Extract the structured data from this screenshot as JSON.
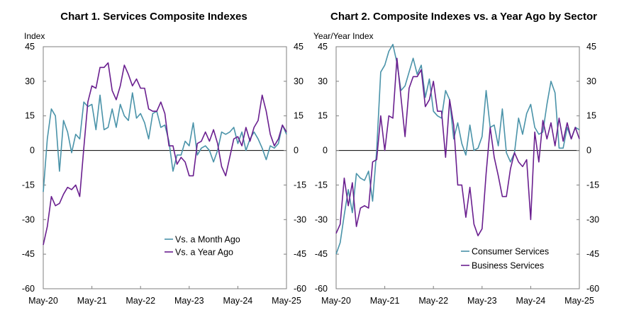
{
  "colors": {
    "teal": "#4a93a9",
    "purple": "#6a1f8f",
    "frame": "#7f7f7f",
    "zero": "#000000"
  },
  "chart_data": [
    {
      "type": "line",
      "title": "Chart 1. Services Composite Indexes",
      "ylabel": "Index",
      "ylim": [
        -60,
        45
      ],
      "yticks": [
        -60,
        -45,
        -30,
        -15,
        0,
        15,
        30,
        45
      ],
      "ytick_labels": [
        "-60",
        "-45",
        "-30",
        "-15",
        "0",
        "15",
        "30",
        "45"
      ],
      "xlim": [
        0,
        60
      ],
      "xtick_positions": [
        0,
        12,
        24,
        36,
        48,
        60
      ],
      "xtick_labels": [
        "May-20",
        "May-21",
        "May-22",
        "May-23",
        "May-24",
        "May-25"
      ],
      "legend_position": "lower-right",
      "series": [
        {
          "name": "Vs. a Month Ago",
          "color": "teal",
          "values": [
            -18,
            5,
            18,
            15,
            -9,
            13,
            8,
            -1,
            7,
            5,
            21,
            19,
            20,
            9,
            24,
            9,
            10,
            18,
            10,
            20,
            15,
            13,
            25,
            14,
            16,
            12,
            5,
            16,
            17,
            10,
            11,
            4,
            -9,
            -2,
            -2,
            4,
            2,
            12,
            -2,
            1,
            2,
            0,
            -5,
            0,
            8,
            7,
            8,
            10,
            3,
            8,
            0,
            5,
            8,
            5,
            1,
            -4,
            2,
            1,
            3,
            11,
            7
          ]
        },
        {
          "name": "Vs. a Year Ago",
          "color": "purple",
          "values": [
            -41,
            -33,
            -20,
            -24,
            -23,
            -19,
            -16,
            -17,
            -15,
            -20,
            1,
            21,
            28,
            27,
            36,
            36,
            38,
            26,
            22,
            28,
            37,
            33,
            28,
            31,
            27,
            27,
            18,
            17,
            17,
            21,
            16,
            2,
            2,
            -6,
            -3,
            -5,
            -11,
            -11,
            3,
            4,
            8,
            4,
            9,
            3,
            -7,
            -11,
            -3,
            5,
            6,
            2,
            10,
            4,
            10,
            13,
            24,
            17,
            7,
            2,
            5,
            11,
            8
          ]
        }
      ]
    },
    {
      "type": "line",
      "title": "Chart 2. Composite Indexes vs. a Year Ago by Sector",
      "ylabel": "Year/Year Index",
      "ylim": [
        -60,
        45
      ],
      "yticks": [
        -60,
        -45,
        -30,
        -15,
        0,
        15,
        30,
        45
      ],
      "ytick_labels": [
        "-60",
        "-45",
        "-30",
        "-15",
        "0",
        "15",
        "30",
        "45"
      ],
      "xlim": [
        0,
        60
      ],
      "xtick_positions": [
        0,
        12,
        24,
        36,
        48,
        60
      ],
      "xtick_labels": [
        "May-20",
        "May-21",
        "May-22",
        "May-23",
        "May-24",
        "May-25"
      ],
      "legend_position": "lower-right",
      "series": [
        {
          "name": "Consumer Services",
          "color": "teal",
          "values": [
            -45,
            -40,
            -28,
            -17,
            -27,
            -10,
            -12,
            -13,
            -9,
            -22,
            0,
            34,
            37,
            43,
            46,
            38,
            26,
            28,
            34,
            40,
            33,
            37,
            23,
            31,
            17,
            15,
            14,
            26,
            22,
            5,
            12,
            3,
            -2,
            11,
            0,
            1,
            6,
            26,
            10,
            11,
            2,
            18,
            -1,
            -5,
            -1,
            14,
            7,
            16,
            20,
            10,
            7,
            8,
            20,
            30,
            25,
            1,
            1,
            10,
            5,
            10,
            9
          ]
        },
        {
          "name": "Business Services",
          "color": "purple",
          "values": [
            -36,
            -32,
            -12,
            -24,
            -14,
            -33,
            -25,
            -24,
            -25,
            -5,
            -4,
            15,
            0,
            15,
            14,
            40,
            23,
            6,
            27,
            32,
            32,
            35,
            19,
            22,
            30,
            17,
            17,
            -3,
            22,
            11,
            -15,
            -15,
            -29,
            -16,
            -32,
            -37,
            -34,
            -10,
            10,
            -3,
            -11,
            -20,
            -20,
            -8,
            -1,
            -5,
            -7,
            -4,
            -30,
            8,
            -5,
            13,
            5,
            12,
            2,
            14,
            4,
            12,
            5,
            10,
            5
          ]
        }
      ]
    }
  ]
}
